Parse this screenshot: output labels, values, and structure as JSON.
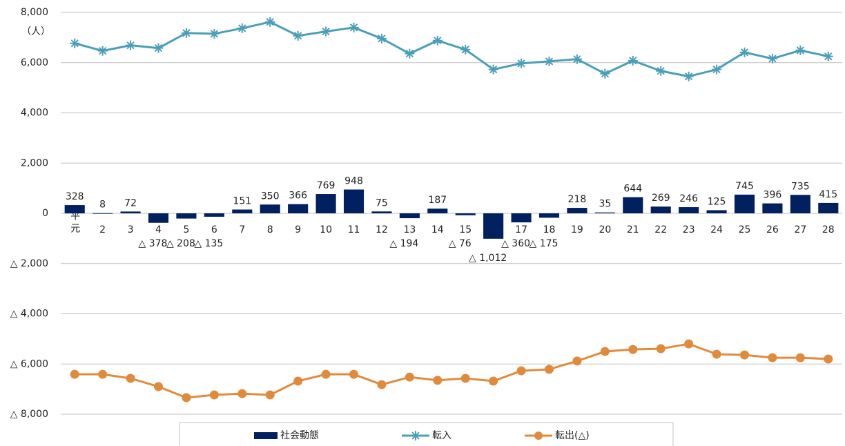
{
  "chart_data": {
    "type": "bar-line",
    "y_unit": "（人）",
    "categories": [
      "平元",
      "2",
      "3",
      "4",
      "5",
      "6",
      "7",
      "8",
      "9",
      "10",
      "11",
      "12",
      "13",
      "14",
      "15",
      "16",
      "17",
      "18",
      "19",
      "20",
      "21",
      "22",
      "23",
      "24",
      "25",
      "26",
      "27",
      "28"
    ],
    "ylim": [
      -8000,
      8000
    ],
    "yticks": [
      {
        "value": 8000,
        "label": "8,000"
      },
      {
        "value": 6000,
        "label": "6,000"
      },
      {
        "value": 4000,
        "label": "4,000"
      },
      {
        "value": 2000,
        "label": "2,000"
      },
      0,
      {
        "value": -2000,
        "label": "△ 2,000"
      },
      {
        "value": -4000,
        "label": "△ 4,000"
      },
      {
        "value": -6000,
        "label": "△ 6,000"
      },
      {
        "value": -8000,
        "label": "△ 8,000"
      }
    ],
    "grid": true,
    "series": [
      {
        "name": "社会動態",
        "type": "bar",
        "color": "#002060",
        "values": [
          328,
          8,
          72,
          -378,
          -208,
          -135,
          151,
          350,
          366,
          769,
          948,
          75,
          -194,
          187,
          -76,
          -1012,
          -360,
          -175,
          218,
          35,
          644,
          269,
          246,
          125,
          745,
          396,
          735,
          415
        ],
        "value_labels": [
          "328",
          "8",
          "72",
          "△ 378",
          "△ 208",
          "△ 135",
          "151",
          "350",
          "366",
          "769",
          "948",
          "75",
          "△ 194",
          "187",
          "△ 76",
          "△ 1,012",
          "△ 360",
          "△ 175",
          "218",
          "35",
          "644",
          "269",
          "246",
          "125",
          "745",
          "396",
          "735",
          "415"
        ]
      },
      {
        "name": "転入",
        "type": "line",
        "marker": "star",
        "color": "#4a9fb8",
        "values": [
          6770,
          6470,
          6690,
          6580,
          7180,
          7150,
          7370,
          7620,
          7070,
          7240,
          7400,
          6960,
          6360,
          6880,
          6520,
          5730,
          5970,
          6050,
          6140,
          5560,
          6080,
          5670,
          5450,
          5730,
          6410,
          6160,
          6490,
          6250
        ]
      },
      {
        "name": "転出(△)",
        "type": "line",
        "marker": "circle",
        "color": "#e08a3c",
        "values": [
          -6410,
          -6410,
          -6570,
          -6900,
          -7340,
          -7230,
          -7180,
          -7230,
          -6680,
          -6410,
          -6410,
          -6820,
          -6520,
          -6650,
          -6570,
          -6680,
          -6270,
          -6210,
          -5880,
          -5500,
          -5420,
          -5390,
          -5200,
          -5610,
          -5640,
          -5750,
          -5750,
          -5800
        ]
      }
    ]
  }
}
